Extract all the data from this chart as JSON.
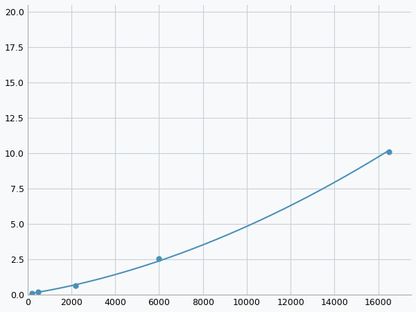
{
  "x": [
    200,
    500,
    2200,
    6000,
    16500
  ],
  "y": [
    0.1,
    0.2,
    0.65,
    2.55,
    10.1
  ],
  "line_color": "#4a90b8",
  "marker_color": "#4a90b8",
  "marker_style": "o",
  "marker_size": 5,
  "linewidth": 1.5,
  "xlim": [
    0,
    17500
  ],
  "ylim": [
    0,
    20.5
  ],
  "xticks": [
    0,
    2000,
    4000,
    6000,
    8000,
    10000,
    12000,
    14000,
    16000
  ],
  "yticks": [
    0.0,
    2.5,
    5.0,
    7.5,
    10.0,
    12.5,
    15.0,
    17.5,
    20.0
  ],
  "grid_color": "#c8d0d8",
  "background_color": "#f8f9fa",
  "tick_fontsize": 9,
  "figsize": [
    6.0,
    4.5
  ],
  "dpi": 100
}
